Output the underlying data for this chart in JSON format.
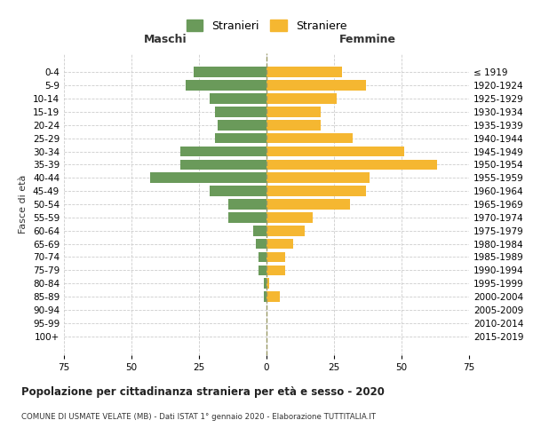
{
  "age_groups": [
    "0-4",
    "5-9",
    "10-14",
    "15-19",
    "20-24",
    "25-29",
    "30-34",
    "35-39",
    "40-44",
    "45-49",
    "50-54",
    "55-59",
    "60-64",
    "65-69",
    "70-74",
    "75-79",
    "80-84",
    "85-89",
    "90-94",
    "95-99",
    "100+"
  ],
  "birth_years": [
    "2015-2019",
    "2010-2014",
    "2005-2009",
    "2000-2004",
    "1995-1999",
    "1990-1994",
    "1985-1989",
    "1980-1984",
    "1975-1979",
    "1970-1974",
    "1965-1969",
    "1960-1964",
    "1955-1959",
    "1950-1954",
    "1945-1949",
    "1940-1944",
    "1935-1939",
    "1930-1934",
    "1925-1929",
    "1920-1924",
    "≤ 1919"
  ],
  "males": [
    27,
    30,
    21,
    19,
    18,
    19,
    32,
    32,
    43,
    21,
    14,
    14,
    5,
    4,
    3,
    3,
    1,
    1,
    0,
    0,
    0
  ],
  "females": [
    28,
    37,
    26,
    20,
    20,
    32,
    51,
    63,
    38,
    37,
    31,
    17,
    14,
    10,
    7,
    7,
    1,
    5,
    0,
    0,
    0
  ],
  "male_color": "#6a9a5a",
  "female_color": "#f5b731",
  "background_color": "#ffffff",
  "grid_color": "#cccccc",
  "center_line_color": "#999966",
  "xlim": 75,
  "title": "Popolazione per cittadinanza straniera per età e sesso - 2020",
  "subtitle": "COMUNE DI USMATE VELATE (MB) - Dati ISTAT 1° gennaio 2020 - Elaborazione TUTTITALIA.IT",
  "xlabel_left": "Maschi",
  "xlabel_right": "Femmine",
  "ylabel_left": "Fasce di età",
  "legend_male": "Stranieri",
  "legend_female": "Straniere"
}
